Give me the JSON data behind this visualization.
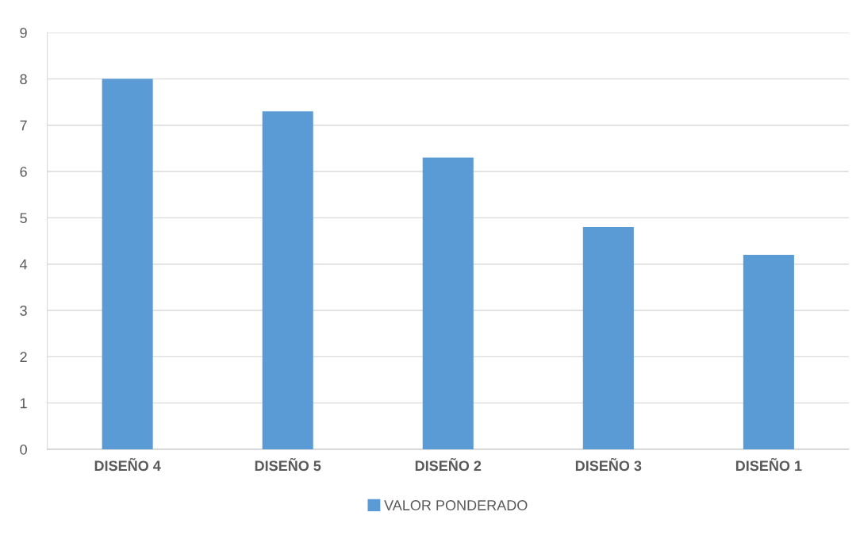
{
  "chart_data": {
    "type": "bar",
    "categories": [
      "DISEÑO 4",
      "DISEÑO 5",
      "DISEÑO 2",
      "DISEÑO 3",
      "DISEÑO 1"
    ],
    "series": [
      {
        "name": "VALOR PONDERADO",
        "color": "#5b9bd5",
        "values": [
          8.0,
          7.3,
          6.3,
          4.8,
          4.2
        ]
      }
    ],
    "ylim": [
      0,
      9
    ],
    "yticks": [
      0,
      1,
      2,
      3,
      4,
      5,
      6,
      7,
      8,
      9
    ],
    "grid": "y",
    "legend": "bottom"
  }
}
